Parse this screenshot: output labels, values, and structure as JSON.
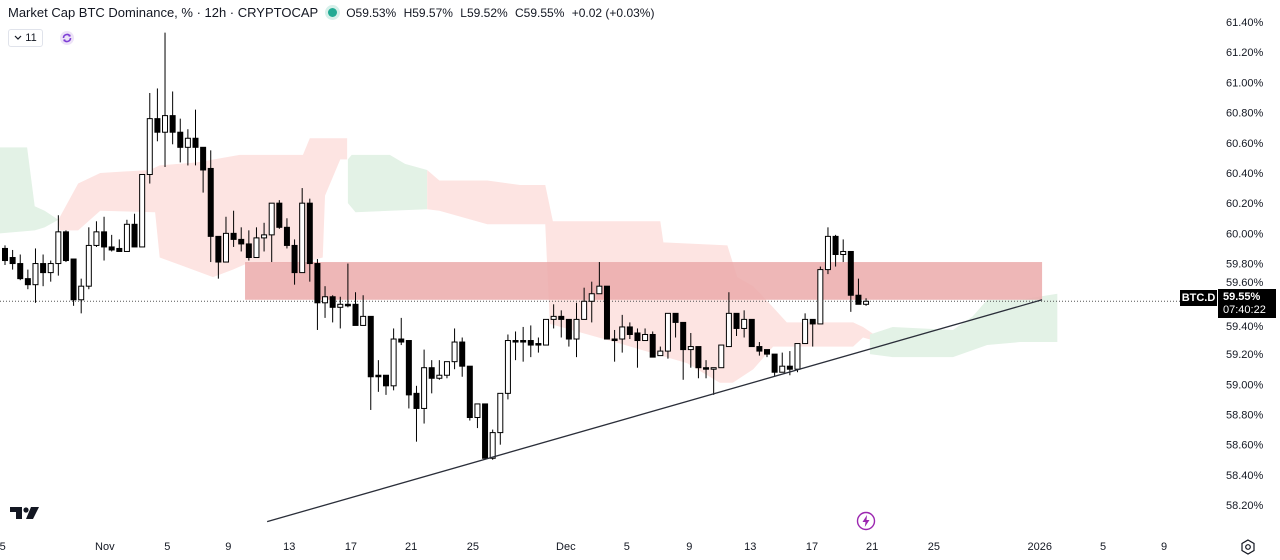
{
  "header": {
    "title": "Market Cap BTC Dominance, % · 12h · CRYPTOCAP",
    "open": "O59.53%",
    "high": "H59.57%",
    "low": "L59.52%",
    "close": "C59.55%",
    "change": "+0.02 (+0.03%)",
    "indicator_count": "11"
  },
  "price_tag": {
    "symbol": "BTC.D",
    "price": "59.55%",
    "countdown": "07:40:22"
  },
  "icons": [
    "chevron-down-icon",
    "refresh-icon",
    "tradingview-logo-icon",
    "lightning-icon",
    "settings-icon"
  ],
  "colors": {
    "up_body": "#ffffff",
    "down_body": "#000000",
    "wick": "#000000",
    "cloud_bear": "#fde4e2",
    "cloud_bull": "#e3f2e6",
    "zone": "#ebaaaa",
    "trendline": "#2a2e39",
    "status_dot": "#22ab94",
    "accent": "#9c27b0"
  },
  "chart_data": {
    "type": "candlestick",
    "title": "Market Cap BTC Dominance, % · 12h · CRYPTOCAP",
    "ylabel": "%",
    "ylim": [
      58.1,
      61.55
    ],
    "xlim_index": [
      0,
      162
    ],
    "y_ticks": [
      "61.40%",
      "61.20%",
      "61.00%",
      "60.80%",
      "60.60%",
      "60.40%",
      "60.20%",
      "60.00%",
      "59.80%",
      "59.60%",
      "59.40%",
      "59.20%",
      "59.00%",
      "58.80%",
      "58.60%",
      "58.40%",
      "58.20%"
    ],
    "x_ticks": [
      {
        "label": "25",
        "index": 0.3
      },
      {
        "label": "Nov",
        "index": 14.1
      },
      {
        "label": "5",
        "index": 22.3
      },
      {
        "label": "9",
        "index": 30.3
      },
      {
        "label": "13",
        "index": 38.3
      },
      {
        "label": "17",
        "index": 46.4
      },
      {
        "label": "21",
        "index": 54.3
      },
      {
        "label": "25",
        "index": 62.4
      },
      {
        "label": "Dec",
        "index": 74.6
      },
      {
        "label": "5",
        "index": 82.6
      },
      {
        "label": "9",
        "index": 90.8
      },
      {
        "label": "13",
        "index": 98.8
      },
      {
        "label": "17",
        "index": 106.9
      },
      {
        "label": "21",
        "index": 114.8
      },
      {
        "label": "25",
        "index": 122.9
      },
      {
        "label": "2026",
        "index": 136.8
      },
      {
        "label": "5",
        "index": 145.1
      },
      {
        "label": "9",
        "index": 153.1
      }
    ],
    "candles_ohlc": [
      [
        59.9,
        59.92,
        59.79,
        59.82
      ],
      [
        59.84,
        59.89,
        59.76,
        59.8
      ],
      [
        59.8,
        59.86,
        59.69,
        59.7
      ],
      [
        59.7,
        59.76,
        59.63,
        59.66
      ],
      [
        59.66,
        59.9,
        59.54,
        59.8
      ],
      [
        59.8,
        59.86,
        59.65,
        59.74
      ],
      [
        59.74,
        59.82,
        59.68,
        59.8
      ],
      [
        59.8,
        60.12,
        59.72,
        60.01
      ],
      [
        60.01,
        60.02,
        59.81,
        59.82
      ],
      [
        59.83,
        59.83,
        59.52,
        59.56
      ],
      [
        59.56,
        59.7,
        59.47,
        59.65
      ],
      [
        59.65,
        60.04,
        59.63,
        59.92
      ],
      [
        59.92,
        60.08,
        59.91,
        60.01
      ],
      [
        60.01,
        60.11,
        59.82,
        59.91
      ],
      [
        59.91,
        59.99,
        59.88,
        59.89
      ],
      [
        59.9,
        59.96,
        59.88,
        59.88
      ],
      [
        59.88,
        60.09,
        59.88,
        60.06
      ],
      [
        60.06,
        60.13,
        59.91,
        59.91
      ],
      [
        59.91,
        60.39,
        59.91,
        60.39
      ],
      [
        60.39,
        60.93,
        60.33,
        60.76
      ],
      [
        60.76,
        60.96,
        60.61,
        60.67
      ],
      [
        60.67,
        61.33,
        60.44,
        60.78
      ],
      [
        60.78,
        60.94,
        60.59,
        60.67
      ],
      [
        60.67,
        60.76,
        60.47,
        60.57
      ],
      [
        60.57,
        60.69,
        60.45,
        60.63
      ],
      [
        60.63,
        60.82,
        60.45,
        60.57
      ],
      [
        60.57,
        60.57,
        60.27,
        60.42
      ],
      [
        60.43,
        60.55,
        59.81,
        59.98
      ],
      [
        59.98,
        59.98,
        59.7,
        59.81
      ],
      [
        59.81,
        60.11,
        59.81,
        60.0
      ],
      [
        60.0,
        60.15,
        59.91,
        59.96
      ],
      [
        59.96,
        60.04,
        59.88,
        59.93
      ],
      [
        59.93,
        60.02,
        59.82,
        59.84
      ],
      [
        59.84,
        60.04,
        59.84,
        59.97
      ],
      [
        59.97,
        60.07,
        59.88,
        59.99
      ],
      [
        59.99,
        60.2,
        59.81,
        60.2
      ],
      [
        60.2,
        60.22,
        60.03,
        60.04
      ],
      [
        60.04,
        60.1,
        59.9,
        59.92
      ],
      [
        59.92,
        59.96,
        59.66,
        59.74
      ],
      [
        59.74,
        60.3,
        59.74,
        60.2
      ],
      [
        60.2,
        60.23,
        59.68,
        59.8
      ],
      [
        59.8,
        59.83,
        59.36,
        59.54
      ],
      [
        59.54,
        59.65,
        59.44,
        59.58
      ],
      [
        59.58,
        59.59,
        59.41,
        59.51
      ],
      [
        59.51,
        59.58,
        59.37,
        59.53
      ],
      [
        59.53,
        59.8,
        59.51,
        59.52
      ],
      [
        59.53,
        59.61,
        59.39,
        59.39
      ],
      [
        59.39,
        59.59,
        59.39,
        59.45
      ],
      [
        59.45,
        59.45,
        58.83,
        59.05
      ],
      [
        59.06,
        59.16,
        58.95,
        59.05
      ],
      [
        59.06,
        59.06,
        58.93,
        58.99
      ],
      [
        58.99,
        59.37,
        58.96,
        59.3
      ],
      [
        59.3,
        59.44,
        59.26,
        59.28
      ],
      [
        59.29,
        59.29,
        58.84,
        58.93
      ],
      [
        58.94,
        58.99,
        58.62,
        58.84
      ],
      [
        58.84,
        59.23,
        58.74,
        59.11
      ],
      [
        59.11,
        59.16,
        58.94,
        59.04
      ],
      [
        59.04,
        59.16,
        59.03,
        59.06
      ],
      [
        59.06,
        59.15,
        59.04,
        59.15
      ],
      [
        59.15,
        59.37,
        59.1,
        59.28
      ],
      [
        59.28,
        59.31,
        59.05,
        59.12
      ],
      [
        59.12,
        59.12,
        58.76,
        58.78
      ],
      [
        58.78,
        58.87,
        58.71,
        58.87
      ],
      [
        58.87,
        58.87,
        58.51,
        58.51
      ],
      [
        58.51,
        58.7,
        58.5,
        58.68
      ],
      [
        58.68,
        58.94,
        58.6,
        58.94
      ],
      [
        58.94,
        59.33,
        58.9,
        59.29
      ],
      [
        59.29,
        59.35,
        59.16,
        59.28
      ],
      [
        59.29,
        59.38,
        59.15,
        59.28
      ],
      [
        59.29,
        59.39,
        59.18,
        59.26
      ],
      [
        59.27,
        59.31,
        59.21,
        59.26
      ],
      [
        59.26,
        59.43,
        59.26,
        59.43
      ],
      [
        59.43,
        59.53,
        59.37,
        59.45
      ],
      [
        59.45,
        59.49,
        59.31,
        59.43
      ],
      [
        59.43,
        59.43,
        59.25,
        59.3
      ],
      [
        59.3,
        59.54,
        59.18,
        59.43
      ],
      [
        59.43,
        59.64,
        59.43,
        59.55
      ],
      [
        59.55,
        59.68,
        59.41,
        59.6
      ],
      [
        59.6,
        59.81,
        59.6,
        59.65
      ],
      [
        59.65,
        59.65,
        59.3,
        59.3
      ],
      [
        59.3,
        59.36,
        59.15,
        59.29
      ],
      [
        59.3,
        59.46,
        59.21,
        59.38
      ],
      [
        59.38,
        59.41,
        59.3,
        59.33
      ],
      [
        59.34,
        59.37,
        59.11,
        59.29
      ],
      [
        59.29,
        59.37,
        59.29,
        59.33
      ],
      [
        59.33,
        59.35,
        59.18,
        59.18
      ],
      [
        59.19,
        59.25,
        59.19,
        59.22
      ],
      [
        59.22,
        59.47,
        59.17,
        59.47
      ],
      [
        59.47,
        59.47,
        59.31,
        59.41
      ],
      [
        59.41,
        59.41,
        59.03,
        59.23
      ],
      [
        59.23,
        59.34,
        59.11,
        59.25
      ],
      [
        59.25,
        59.25,
        59.04,
        59.11
      ],
      [
        59.11,
        59.16,
        59.04,
        59.1
      ],
      [
        59.1,
        59.11,
        58.93,
        59.11
      ],
      [
        59.11,
        59.26,
        59.11,
        59.26
      ],
      [
        59.25,
        59.61,
        59.25,
        59.47
      ],
      [
        59.47,
        59.47,
        59.32,
        59.37
      ],
      [
        59.37,
        59.49,
        59.31,
        59.43
      ],
      [
        59.43,
        59.43,
        59.25,
        59.25
      ],
      [
        59.25,
        59.28,
        59.19,
        59.22
      ],
      [
        59.23,
        59.23,
        59.18,
        59.2
      ],
      [
        59.2,
        59.2,
        59.05,
        59.08
      ],
      [
        59.08,
        59.21,
        59.08,
        59.12
      ],
      [
        59.12,
        59.22,
        59.06,
        59.1
      ],
      [
        59.1,
        59.27,
        59.08,
        59.27
      ],
      [
        59.27,
        59.47,
        59.27,
        59.43
      ],
      [
        59.43,
        59.43,
        59.25,
        59.4
      ],
      [
        59.4,
        59.78,
        59.4,
        59.76
      ],
      [
        59.76,
        60.04,
        59.73,
        59.98
      ],
      [
        59.98,
        59.99,
        59.78,
        59.86
      ],
      [
        59.86,
        59.96,
        59.81,
        59.88
      ],
      [
        59.88,
        59.88,
        59.48,
        59.59
      ],
      [
        59.59,
        59.7,
        59.53,
        59.53
      ],
      [
        59.53,
        59.57,
        59.52,
        59.55
      ]
    ],
    "last_price": 59.55,
    "resistance_zone": {
      "from_index": 32.5,
      "to_index": 137.1,
      "low": 59.56,
      "high": 59.81
    },
    "trendline": [
      [
        35.4,
        58.09
      ],
      [
        137.1,
        59.56
      ]
    ],
    "clouds": [
      {
        "kind": "bull",
        "points": [
          [
            0.3,
            60.57
          ],
          [
            3.9,
            60.57
          ],
          [
            4.9,
            60.18
          ],
          [
            6.2,
            60.15
          ],
          [
            8.0,
            60.09
          ],
          [
            6.2,
            60.04
          ],
          [
            4.9,
            60.02
          ],
          [
            0.3,
            60.0
          ]
        ]
      },
      {
        "kind": "bear",
        "points": [
          [
            8.0,
            60.09
          ],
          [
            10.6,
            60.33
          ],
          [
            13.5,
            60.4
          ],
          [
            20.0,
            60.42
          ],
          [
            21.3,
            60.45
          ],
          [
            26.2,
            60.47
          ],
          [
            31.8,
            60.52
          ],
          [
            40.1,
            60.52
          ],
          [
            41.0,
            60.63
          ],
          [
            45.9,
            60.63
          ],
          [
            45.9,
            60.49
          ],
          [
            45.0,
            60.49
          ],
          [
            43.0,
            60.25
          ],
          [
            42.7,
            59.84
          ],
          [
            39.7,
            59.8
          ],
          [
            33.2,
            59.81
          ],
          [
            30.9,
            59.76
          ],
          [
            28.3,
            59.71
          ],
          [
            24.0,
            59.79
          ],
          [
            21.3,
            59.84
          ],
          [
            20.7,
            60.14
          ],
          [
            13.5,
            60.15
          ],
          [
            10.6,
            60.02
          ],
          [
            8.2,
            60.02
          ]
        ]
      },
      {
        "kind": "bull",
        "points": [
          [
            46.0,
            60.49
          ],
          [
            46.5,
            60.52
          ],
          [
            51.5,
            60.52
          ],
          [
            53.5,
            60.46
          ],
          [
            56.4,
            60.42
          ],
          [
            56.4,
            60.16
          ],
          [
            47.0,
            60.14
          ],
          [
            46.0,
            60.2
          ]
        ]
      },
      {
        "kind": "bear",
        "points": [
          [
            56.4,
            60.42
          ],
          [
            58.0,
            60.35
          ],
          [
            64.3,
            60.35
          ],
          [
            68.6,
            60.32
          ],
          [
            71.9,
            60.32
          ],
          [
            72.9,
            60.08
          ],
          [
            87.0,
            60.08
          ],
          [
            87.4,
            59.94
          ],
          [
            95.8,
            59.92
          ],
          [
            97.1,
            59.71
          ],
          [
            99.2,
            59.65
          ],
          [
            101.8,
            59.51
          ],
          [
            103.6,
            59.41
          ],
          [
            112.3,
            59.41
          ],
          [
            113.6,
            59.38
          ],
          [
            117.1,
            59.26
          ],
          [
            113.6,
            59.31
          ],
          [
            112.3,
            59.25
          ],
          [
            101.8,
            59.25
          ],
          [
            99.2,
            59.1
          ],
          [
            96.5,
            59.01
          ],
          [
            94.8,
            59.01
          ],
          [
            90.5,
            59.14
          ],
          [
            81.7,
            59.27
          ],
          [
            72.5,
            59.4
          ],
          [
            71.9,
            60.06
          ],
          [
            64.3,
            60.06
          ],
          [
            58.0,
            60.15
          ],
          [
            56.4,
            60.16
          ]
        ]
      },
      {
        "kind": "bull",
        "points": [
          [
            114.5,
            59.33
          ],
          [
            117.5,
            59.38
          ],
          [
            125.4,
            59.36
          ],
          [
            128.0,
            59.45
          ],
          [
            129.9,
            59.56
          ],
          [
            134.2,
            59.56
          ],
          [
            139.1,
            59.6
          ],
          [
            139.1,
            59.28
          ],
          [
            134.2,
            59.28
          ],
          [
            129.9,
            59.26
          ],
          [
            125.4,
            59.18
          ],
          [
            117.5,
            59.18
          ],
          [
            114.5,
            59.2
          ]
        ]
      }
    ]
  }
}
